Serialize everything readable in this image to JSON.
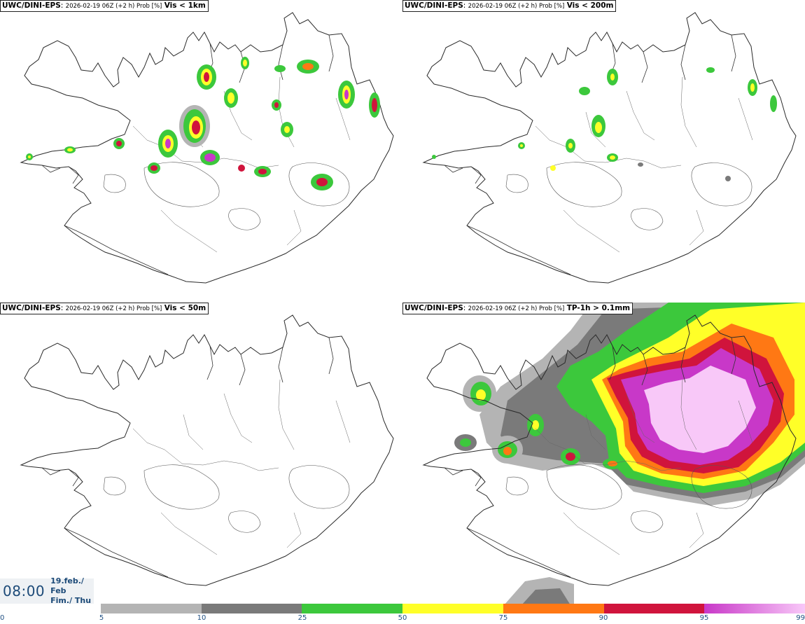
{
  "panels": [
    {
      "model": "UWC/DINI-EPS",
      "meta": "2026-02-19 06Z (+2 h) Prob [%]",
      "condition": "Vis < 1km"
    },
    {
      "model": "UWC/DINI-EPS",
      "meta": "2026-02-19 06Z (+2 h) Prob [%]",
      "condition": "Vis < 200m"
    },
    {
      "model": "UWC/DINI-EPS",
      "meta": "2026-02-19 06Z (+2 h) Prob [%]",
      "condition": "Vis < 50m"
    },
    {
      "model": "UWC/DINI-EPS",
      "meta": "2026-02-19 06Z (+2 h) Prob [%]",
      "condition": "TP-1h > 0.1mm"
    }
  ],
  "valid_time": {
    "time": "08:00",
    "date_line1": "19.feb./ Feb",
    "date_line2": "Fim./ Thu"
  },
  "legend": {
    "ticks": [
      "0",
      "5",
      "10",
      "25",
      "50",
      "75",
      "90",
      "95",
      "99"
    ],
    "colors": [
      "#b4b4b4",
      "#7a7a7a",
      "#3cc83c",
      "#ffff28",
      "#ff7814",
      "#d0143c",
      "gradient"
    ],
    "palette": {
      "gray_light": "#b4b4b4",
      "gray_dark": "#7a7a7a",
      "green": "#3cc83c",
      "yellow": "#ffff28",
      "orange": "#ff7814",
      "red": "#d0143c",
      "magenta": "#c838c8",
      "pink": "#f8c8f8"
    }
  },
  "colors": {
    "title_text": "#000000",
    "time_text": "#1c4a78",
    "tick_text": "#1f4f82",
    "coast": "#2a2a2a"
  }
}
